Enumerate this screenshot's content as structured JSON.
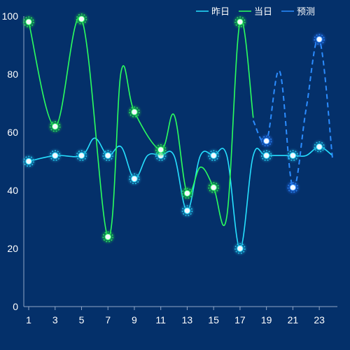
{
  "chart_data": {
    "type": "line",
    "x": [
      1,
      2,
      3,
      4,
      5,
      6,
      7,
      8,
      9,
      10,
      11,
      12,
      13,
      14,
      15,
      16,
      17,
      18,
      19,
      20,
      21,
      22,
      23,
      24
    ],
    "xticks": [
      "1",
      "3",
      "5",
      "7",
      "9",
      "11",
      "13",
      "15",
      "17",
      "19",
      "21",
      "23"
    ],
    "yticks": [
      "0",
      "20",
      "40",
      "60",
      "80",
      "100"
    ],
    "ylim": [
      0,
      100
    ],
    "legend_position": "top-right",
    "series": [
      {
        "name": "昨日",
        "color": "#26e0ff",
        "style": "solid",
        "points": [
          [
            1,
            50
          ],
          [
            3,
            52
          ],
          [
            5,
            52
          ],
          [
            6,
            58
          ],
          [
            7,
            52
          ],
          [
            8,
            55
          ],
          [
            9,
            44
          ],
          [
            10,
            52
          ],
          [
            11,
            52
          ],
          [
            12,
            52
          ],
          [
            13,
            33
          ],
          [
            14,
            52
          ],
          [
            15,
            52
          ],
          [
            16,
            52
          ],
          [
            17,
            20
          ],
          [
            18,
            52
          ],
          [
            19,
            52
          ],
          [
            21,
            52
          ],
          [
            22,
            52
          ],
          [
            23,
            55
          ],
          [
            24,
            52
          ]
        ],
        "markers": [
          1,
          3,
          5,
          7,
          9,
          11,
          13,
          15,
          17,
          19,
          21,
          23
        ]
      },
      {
        "name": "当日",
        "color": "#2bff5e",
        "style": "solid",
        "points": [
          [
            1,
            98
          ],
          [
            3,
            62
          ],
          [
            5,
            99
          ],
          [
            7,
            24
          ],
          [
            8,
            81
          ],
          [
            9,
            67
          ],
          [
            11,
            54
          ],
          [
            12,
            66
          ],
          [
            13,
            39
          ],
          [
            14,
            48
          ],
          [
            15,
            41
          ],
          [
            16,
            31
          ],
          [
            17,
            98
          ],
          [
            18,
            65
          ]
        ],
        "markers": [
          1,
          3,
          5,
          7,
          9,
          11,
          13,
          15,
          17
        ]
      },
      {
        "name": "预测",
        "color": "#2b8cff",
        "style": "dashed",
        "points": [
          [
            18,
            64
          ],
          [
            19,
            57
          ],
          [
            20,
            81
          ],
          [
            21,
            41
          ],
          [
            22,
            68
          ],
          [
            23,
            92
          ],
          [
            24,
            51
          ]
        ],
        "markers": [
          19,
          21,
          23
        ]
      }
    ]
  }
}
